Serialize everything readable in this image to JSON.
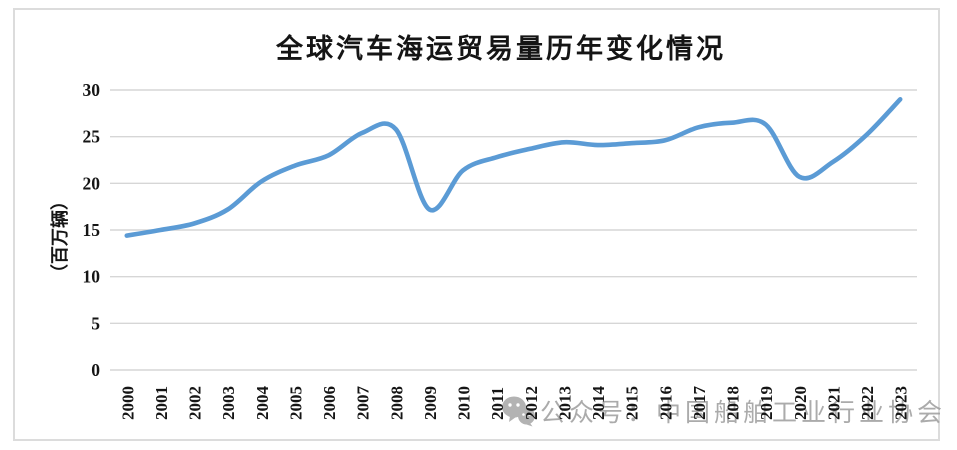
{
  "chart_data": {
    "type": "line",
    "title": "全球汽车海运贸易量历年变化情况",
    "ylabel": "（百万辆）",
    "xlabel": "",
    "categories": [
      "2000",
      "2001",
      "2002",
      "2003",
      "2004",
      "2005",
      "2006",
      "2007",
      "2008",
      "2009",
      "2010",
      "2011",
      "2012",
      "2013",
      "2014",
      "2015",
      "2016",
      "2017",
      "2018",
      "2019",
      "2020",
      "2021",
      "2022",
      "2023"
    ],
    "values": [
      14.4,
      15.0,
      15.7,
      17.2,
      20.2,
      21.9,
      23.0,
      25.4,
      25.8,
      17.2,
      21.4,
      22.8,
      23.7,
      24.4,
      24.1,
      24.3,
      24.6,
      26.0,
      26.5,
      26.3,
      20.7,
      22.3,
      25.2,
      29.0
    ],
    "ylim": [
      0,
      30
    ],
    "yticks": [
      0,
      5,
      10,
      15,
      20,
      25,
      30
    ],
    "grid": "horizontal",
    "legend": "none",
    "smooth": true
  },
  "watermark": {
    "text": "公众号：中国船舶工业行业协会",
    "icon": "wechat-icon"
  },
  "colors": {
    "line": "#5B9BD5",
    "grid": "#D6D6D6",
    "frame": "#DCDCDC",
    "text": "#151515",
    "watermark": "#989898"
  }
}
